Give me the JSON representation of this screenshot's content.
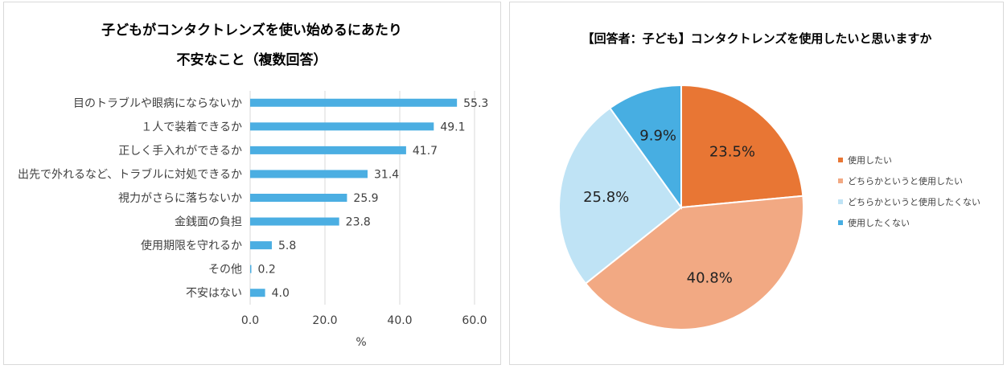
{
  "bar_chart": {
    "title_line1": "子どもがコンタクトレンズを使い始めるにあたり",
    "title_line2": "不安なこと（複数回答）",
    "xlabel": "%",
    "bar_color": "#4BAEE2"
  },
  "pie_chart": {
    "title": "【回答者：子ども】コンタクトレンズを使用したいと思いますか"
  },
  "chart_data": [
    {
      "type": "bar",
      "orientation": "horizontal",
      "title": "子どもがコンタクトレンズを使い始めるにあたり 不安なこと（複数回答）",
      "categories": [
        "目のトラブルや眼病にならないか",
        "１人で装着できるか",
        "正しく手入れができるか",
        "出先で外れるなど、トラブルに対処できるか",
        "視力がさらに落ちないか",
        "金銭面の負担",
        "使用期限を守れるか",
        "その他",
        "不安はない"
      ],
      "values": [
        55.3,
        49.1,
        41.7,
        31.4,
        25.9,
        23.8,
        5.8,
        0.2,
        4.0
      ],
      "value_labels": [
        "55.3",
        "49.1",
        "41.7",
        "31.4",
        "25.9",
        "23.8",
        "5.8",
        "0.2",
        "4.0"
      ],
      "xlim": [
        0,
        60
      ],
      "xticks": [
        "0.0",
        "20.0",
        "40.0",
        "60.0"
      ],
      "xlabel": "%",
      "grid": true
    },
    {
      "type": "pie",
      "title": "【回答者：子ども】コンタクトレンズを使用したいと思いますか",
      "labels": [
        "使用したい",
        "どちらかというと使用したい",
        "どちらかというと使用したくない",
        "使用したくない"
      ],
      "values": [
        23.5,
        40.8,
        25.8,
        9.9
      ],
      "value_labels": [
        "23.5%",
        "40.8%",
        "25.8%",
        "9.9%"
      ],
      "colors": [
        "#E87634",
        "#F2A983",
        "#BFE3F5",
        "#47AEE2"
      ],
      "legend": "right"
    }
  ]
}
